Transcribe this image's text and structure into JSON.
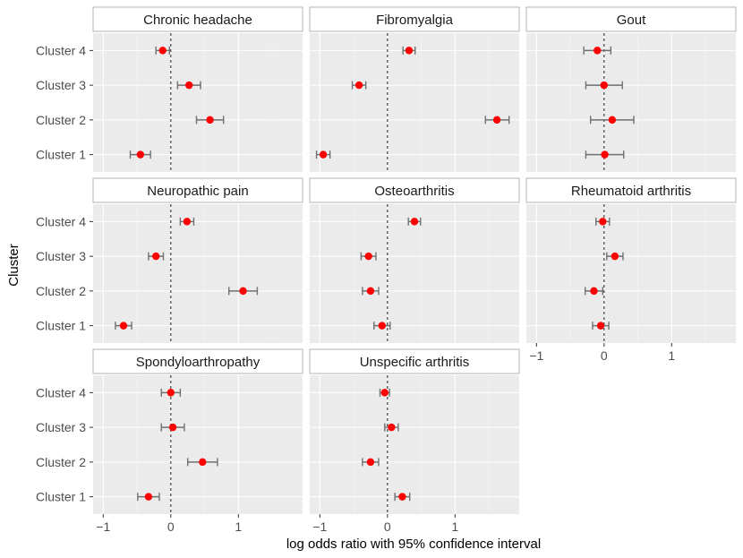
{
  "chart_data": {
    "type": "forest-facet",
    "xlabel": "log odds ratio with 95% confidence interval",
    "ylabel": "Cluster",
    "categories": [
      "Cluster 1",
      "Cluster 2",
      "Cluster 3",
      "Cluster 4"
    ],
    "xlim": [
      -1.15,
      1.95
    ],
    "xticks": [
      -1,
      0,
      1
    ],
    "xtick_labels": [
      "−1",
      "0",
      "1"
    ],
    "reference_line": 0,
    "point_color": "#ff0000",
    "ci_color": "#707070",
    "panels": [
      {
        "title": "Chronic headache",
        "clusters": [
          {
            "label": "Cluster 1",
            "estimate": -0.45,
            "lower": -0.6,
            "upper": -0.3
          },
          {
            "label": "Cluster 2",
            "estimate": 0.58,
            "lower": 0.38,
            "upper": 0.78
          },
          {
            "label": "Cluster 3",
            "estimate": 0.27,
            "lower": 0.1,
            "upper": 0.44
          },
          {
            "label": "Cluster 4",
            "estimate": -0.12,
            "lower": -0.22,
            "upper": -0.02
          }
        ]
      },
      {
        "title": "Fibromyalgia",
        "clusters": [
          {
            "label": "Cluster 1",
            "estimate": -0.95,
            "lower": -1.05,
            "upper": -0.85
          },
          {
            "label": "Cluster 2",
            "estimate": 1.62,
            "lower": 1.45,
            "upper": 1.8
          },
          {
            "label": "Cluster 3",
            "estimate": -0.42,
            "lower": -0.52,
            "upper": -0.32
          },
          {
            "label": "Cluster 4",
            "estimate": 0.32,
            "lower": 0.23,
            "upper": 0.41
          }
        ]
      },
      {
        "title": "Gout",
        "clusters": [
          {
            "label": "Cluster 1",
            "estimate": 0.01,
            "lower": -0.27,
            "upper": 0.29
          },
          {
            "label": "Cluster 2",
            "estimate": 0.12,
            "lower": -0.2,
            "upper": 0.44
          },
          {
            "label": "Cluster 3",
            "estimate": 0.0,
            "lower": -0.27,
            "upper": 0.27
          },
          {
            "label": "Cluster 4",
            "estimate": -0.1,
            "lower": -0.3,
            "upper": 0.1
          }
        ]
      },
      {
        "title": "Neuropathic pain",
        "clusters": [
          {
            "label": "Cluster 1",
            "estimate": -0.7,
            "lower": -0.82,
            "upper": -0.58
          },
          {
            "label": "Cluster 2",
            "estimate": 1.07,
            "lower": 0.86,
            "upper": 1.28
          },
          {
            "label": "Cluster 3",
            "estimate": -0.22,
            "lower": -0.33,
            "upper": -0.11
          },
          {
            "label": "Cluster 4",
            "estimate": 0.24,
            "lower": 0.14,
            "upper": 0.34
          }
        ]
      },
      {
        "title": "Osteoarthritis",
        "clusters": [
          {
            "label": "Cluster 1",
            "estimate": -0.08,
            "lower": -0.2,
            "upper": 0.04
          },
          {
            "label": "Cluster 2",
            "estimate": -0.25,
            "lower": -0.37,
            "upper": -0.13
          },
          {
            "label": "Cluster 3",
            "estimate": -0.28,
            "lower": -0.39,
            "upper": -0.17
          },
          {
            "label": "Cluster 4",
            "estimate": 0.4,
            "lower": 0.31,
            "upper": 0.49
          }
        ]
      },
      {
        "title": "Rheumatoid arthritis",
        "clusters": [
          {
            "label": "Cluster 1",
            "estimate": -0.05,
            "lower": -0.17,
            "upper": 0.07
          },
          {
            "label": "Cluster 2",
            "estimate": -0.15,
            "lower": -0.28,
            "upper": -0.02
          },
          {
            "label": "Cluster 3",
            "estimate": 0.16,
            "lower": 0.04,
            "upper": 0.28
          },
          {
            "label": "Cluster 4",
            "estimate": -0.02,
            "lower": -0.12,
            "upper": 0.08
          }
        ]
      },
      {
        "title": "Spondyloarthropathy",
        "clusters": [
          {
            "label": "Cluster 1",
            "estimate": -0.33,
            "lower": -0.49,
            "upper": -0.17
          },
          {
            "label": "Cluster 2",
            "estimate": 0.47,
            "lower": 0.25,
            "upper": 0.69
          },
          {
            "label": "Cluster 3",
            "estimate": 0.03,
            "lower": -0.14,
            "upper": 0.2
          },
          {
            "label": "Cluster 4",
            "estimate": 0.0,
            "lower": -0.14,
            "upper": 0.14
          }
        ]
      },
      {
        "title": "Unspecific arthritis",
        "clusters": [
          {
            "label": "Cluster 1",
            "estimate": 0.22,
            "lower": 0.11,
            "upper": 0.33
          },
          {
            "label": "Cluster 2",
            "estimate": -0.25,
            "lower": -0.37,
            "upper": -0.13
          },
          {
            "label": "Cluster 3",
            "estimate": 0.06,
            "lower": -0.04,
            "upper": 0.16
          },
          {
            "label": "Cluster 4",
            "estimate": -0.04,
            "lower": -0.11,
            "upper": 0.03
          }
        ]
      }
    ]
  }
}
